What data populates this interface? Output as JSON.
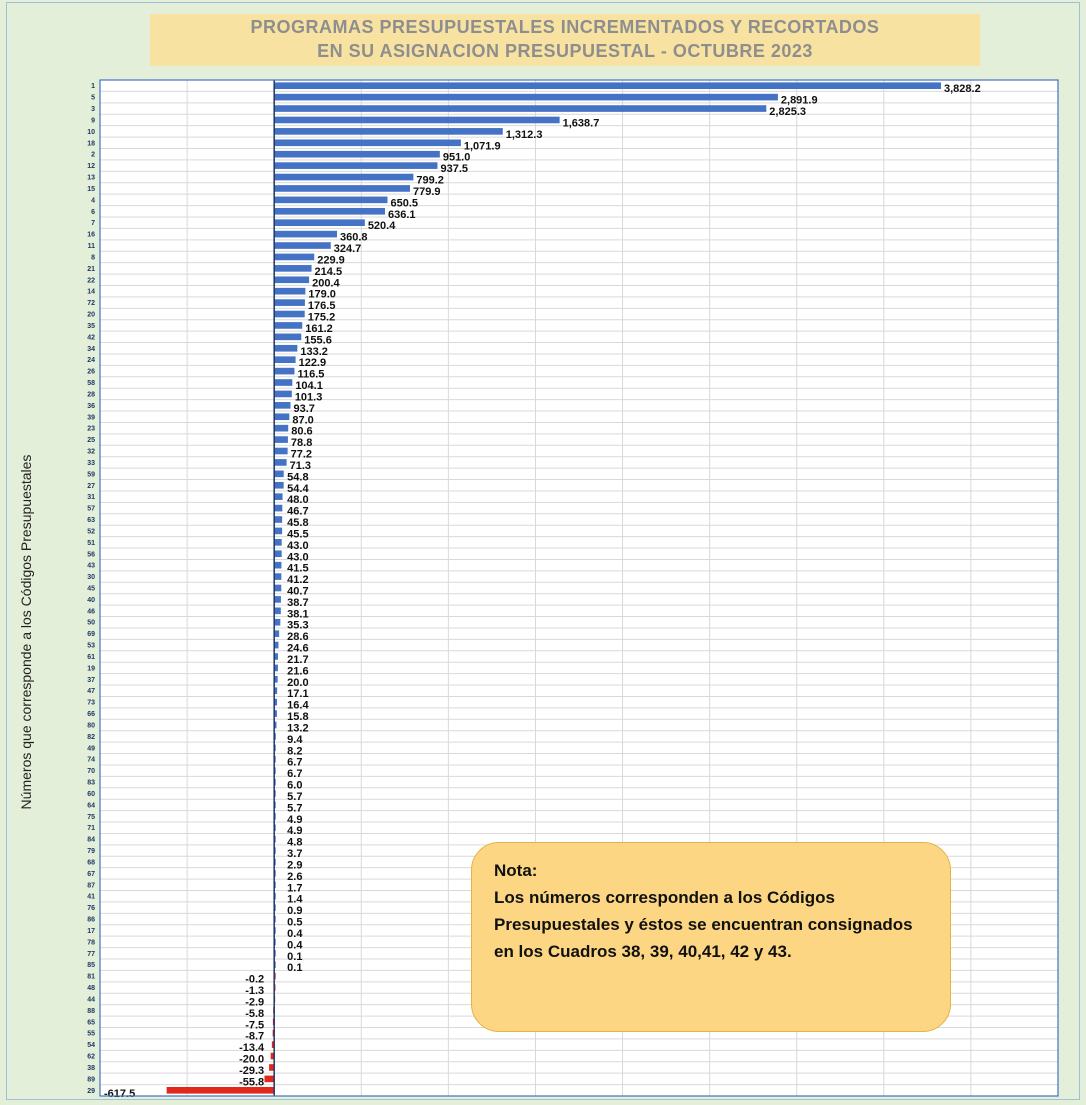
{
  "chart_data": {
    "type": "bar",
    "orientation": "horizontal",
    "title": "PROGRAMAS PRESUPUESTALES INCREMENTADOS Y RECORTADOS EN SU ASIGNACION PRESUPUESTAL - OCTUBRE 2023",
    "title_lines": [
      "PROGRAMAS PRESUPUESTALES INCREMENTADOS Y RECORTADOS",
      "EN SU ASIGNACION PRESUPUESTAL - OCTUBRE 2023"
    ],
    "xlabel": "",
    "ylabel": "Números que corresponde a los Códigos Presupuestales",
    "categories": [
      "1",
      "5",
      "3",
      "9",
      "10",
      "18",
      "2",
      "12",
      "13",
      "15",
      "4",
      "6",
      "7",
      "16",
      "11",
      "8",
      "21",
      "22",
      "14",
      "72",
      "20",
      "35",
      "42",
      "34",
      "24",
      "26",
      "58",
      "28",
      "36",
      "39",
      "23",
      "25",
      "32",
      "33",
      "59",
      "27",
      "31",
      "57",
      "63",
      "52",
      "51",
      "56",
      "43",
      "30",
      "45",
      "40",
      "46",
      "50",
      "69",
      "53",
      "61",
      "19",
      "37",
      "47",
      "73",
      "66",
      "80",
      "82",
      "49",
      "74",
      "70",
      "83",
      "60",
      "64",
      "75",
      "71",
      "84",
      "79",
      "68",
      "67",
      "87",
      "41",
      "76",
      "86",
      "17",
      "78",
      "77",
      "85",
      "81",
      "48",
      "44",
      "88",
      "65",
      "55",
      "54",
      "62",
      "38",
      "89",
      "29"
    ],
    "values": [
      3828.2,
      2891.9,
      2825.3,
      1638.7,
      1312.3,
      1071.9,
      951.0,
      937.5,
      799.2,
      779.9,
      650.5,
      636.1,
      520.4,
      360.8,
      324.7,
      229.9,
      214.5,
      200.4,
      179.0,
      176.5,
      175.2,
      161.2,
      155.6,
      133.2,
      122.9,
      116.5,
      104.1,
      101.3,
      93.7,
      87.0,
      80.6,
      78.8,
      77.2,
      71.3,
      54.8,
      54.4,
      48.0,
      46.7,
      45.8,
      45.5,
      43.0,
      43.0,
      41.5,
      41.2,
      40.7,
      38.7,
      38.1,
      35.3,
      28.6,
      24.6,
      21.7,
      21.6,
      20.0,
      17.1,
      16.4,
      15.8,
      13.2,
      9.4,
      8.2,
      6.7,
      6.7,
      6.0,
      5.7,
      5.7,
      4.9,
      4.9,
      4.8,
      3.7,
      2.9,
      2.6,
      1.7,
      1.4,
      0.9,
      0.5,
      0.4,
      0.4,
      0.1,
      0.1,
      -0.2,
      -1.3,
      -2.9,
      -5.8,
      -7.5,
      -8.7,
      -13.4,
      -20.0,
      -29.3,
      -55.8,
      -617.5
    ],
    "data_labels": [
      "3,828.2",
      "2,891.9",
      "2,825.3",
      "1,638.7",
      "1,312.3",
      "1,071.9",
      "951.0",
      "937.5",
      "799.2",
      "779.9",
      "650.5",
      "636.1",
      "520.4",
      "360.8",
      "324.7",
      "229.9",
      "214.5",
      "200.4",
      "179.0",
      "176.5",
      "175.2",
      "161.2",
      "155.6",
      "133.2",
      "122.9",
      "116.5",
      "104.1",
      "101.3",
      "93.7",
      "87.0",
      "80.6",
      "78.8",
      "77.2",
      "71.3",
      "54.8",
      "54.4",
      "48.0",
      "46.7",
      "45.8",
      "45.5",
      "43.0",
      "43.0",
      "41.5",
      "41.2",
      "40.7",
      "38.7",
      "38.1",
      "35.3",
      "28.6",
      "24.6",
      "21.7",
      "21.6",
      "20.0",
      "17.1",
      "16.4",
      "15.8",
      "13.2",
      "9.4",
      "8.2",
      "6.7",
      "6.7",
      "6.0",
      "5.7",
      "5.7",
      "4.9",
      "4.9",
      "4.8",
      "3.7",
      "2.9",
      "2.6",
      "1.7",
      "1.4",
      "0.9",
      "0.5",
      "0.4",
      "0.4",
      "0.1",
      "0.1",
      "-0.2",
      "-1.3",
      "-2.9",
      "-5.8",
      "-7.5",
      "-8.7",
      "-13.4",
      "-20.0",
      "-29.3",
      "-55.8",
      "-617.5"
    ],
    "xlim": [
      -1000,
      4500
    ],
    "grid": true,
    "colors": {
      "positive": "#4472c4",
      "negative": "#e0281c",
      "zero_line": "#1f3864",
      "background": "#e3efd9",
      "title_band": "#f7e2a2",
      "note_fill": "#fcd683"
    }
  },
  "note": {
    "title": "Nota:",
    "text": "Los números corresponden a los Códigos Presupuestales y éstos se encuentran consignados en los Cuadros 38, 39, 40,41, 42 y 43."
  }
}
